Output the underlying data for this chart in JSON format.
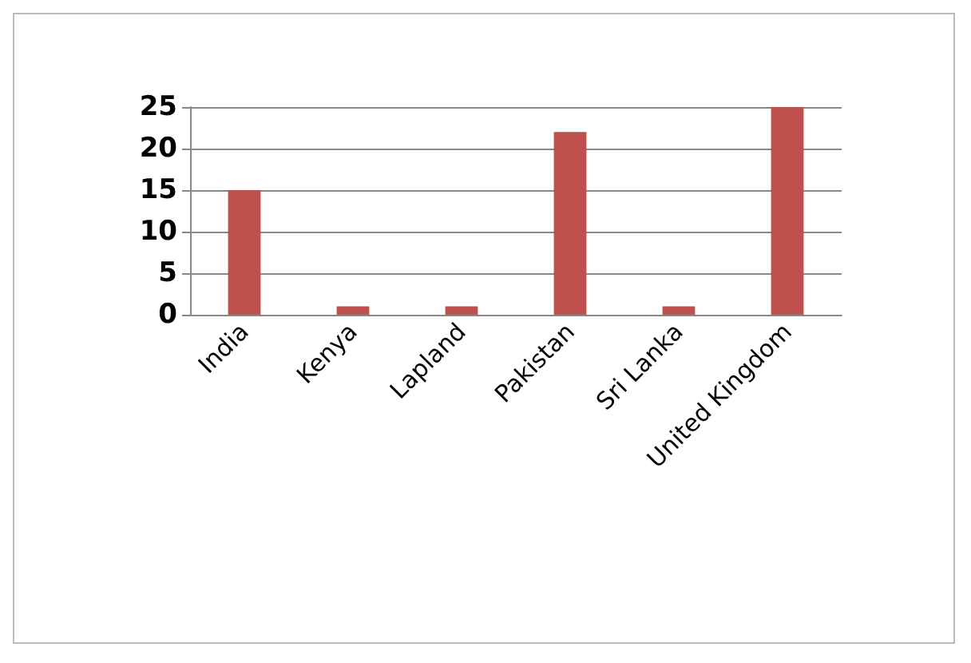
{
  "chart_data": {
    "type": "bar",
    "categories": [
      "India",
      "Kenya",
      "Lapland",
      "Pakistan",
      "Sri Lanka",
      "United Kingdom"
    ],
    "values": [
      15,
      1,
      1,
      22,
      1,
      25
    ],
    "color": "#c0504d",
    "ylim": [
      0,
      25
    ],
    "yticks": [
      0,
      5,
      10,
      15,
      20,
      25
    ],
    "grid": "y"
  }
}
